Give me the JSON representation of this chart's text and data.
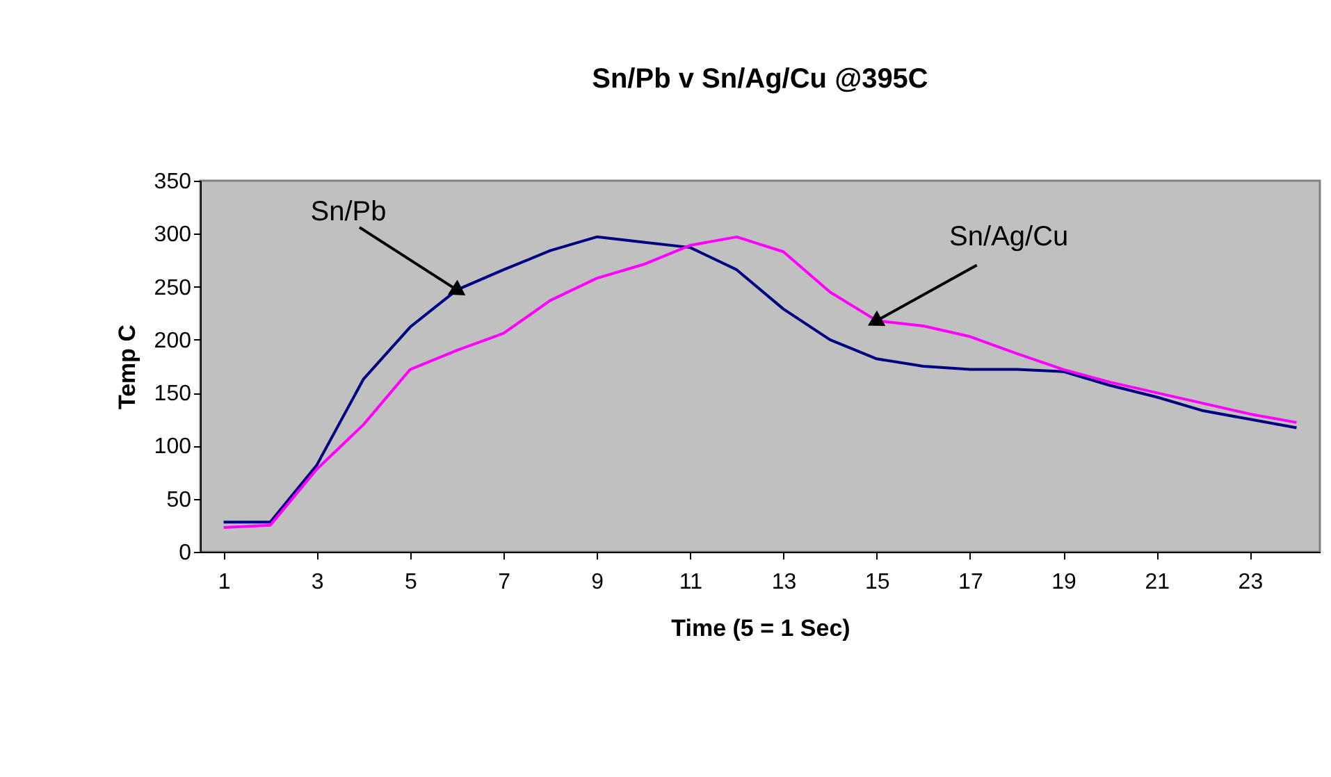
{
  "chart_data": {
    "type": "line",
    "title": "Sn/Pb v Sn/Ag/Cu @395C",
    "xlabel": "Time (5 = 1 Sec)",
    "ylabel": "Temp C",
    "x": [
      1,
      2,
      3,
      4,
      5,
      6,
      7,
      8,
      9,
      10,
      11,
      12,
      13,
      14,
      15,
      16,
      17,
      18,
      19,
      20,
      21,
      22,
      23,
      24
    ],
    "xlim": [
      0.5,
      24.5
    ],
    "xticks": [
      1,
      3,
      5,
      7,
      9,
      11,
      13,
      15,
      17,
      19,
      21,
      23
    ],
    "ylim": [
      0,
      350
    ],
    "yticks": [
      0,
      50,
      100,
      150,
      200,
      250,
      300,
      350
    ],
    "series": [
      {
        "name": "Sn/Pb",
        "color": "#000080",
        "values": [
          28,
          28,
          82,
          163,
          212,
          247,
          266,
          284,
          297,
          292,
          287,
          266,
          229,
          200,
          182,
          175,
          172,
          172,
          170,
          157,
          146,
          133,
          125,
          117
        ]
      },
      {
        "name": "Sn/Ag/Cu",
        "color": "#ff00ff",
        "values": [
          23,
          25,
          78,
          120,
          172,
          190,
          206,
          237,
          258,
          271,
          289,
          297,
          283,
          245,
          218,
          213,
          203,
          187,
          172,
          160,
          150,
          140,
          130,
          122
        ]
      }
    ],
    "grid": false,
    "marker": "none",
    "line_style": "solid"
  }
}
